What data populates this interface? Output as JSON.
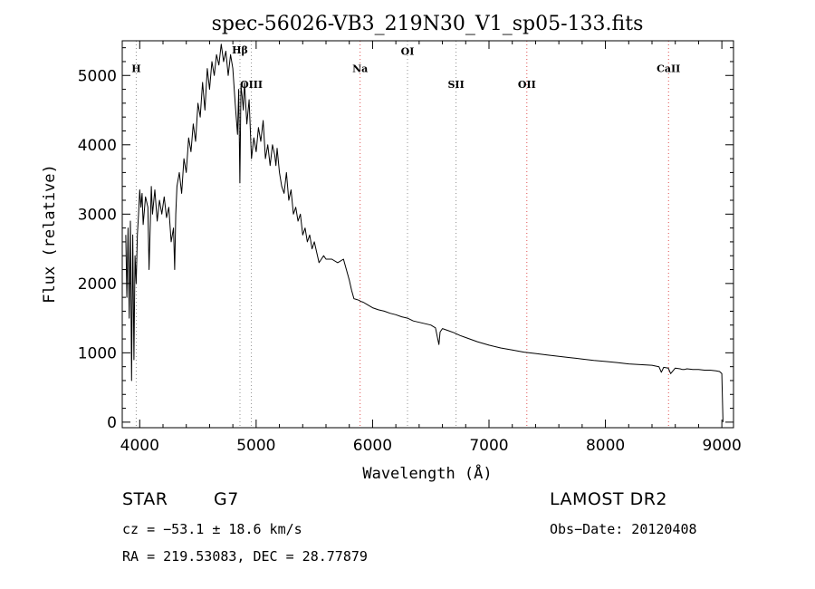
{
  "chart_data": {
    "type": "line",
    "title": "spec-56026-VB3_219N30_V1_sp05-133.fits",
    "xlabel": "Wavelength (Å)",
    "ylabel": "Flux (relative)",
    "xlim": [
      3850,
      9100
    ],
    "ylim": [
      -80,
      5500
    ],
    "x_ticks": [
      4000,
      5000,
      6000,
      7000,
      8000,
      9000
    ],
    "y_ticks": [
      0,
      1000,
      2000,
      3000,
      4000,
      5000
    ],
    "grid": false,
    "series": [
      {
        "x": [
          3880,
          3890,
          3900,
          3910,
          3920,
          3930,
          3940,
          3950,
          3960,
          3970,
          3980,
          3990,
          4000,
          4010,
          4020,
          4030,
          4050,
          4070,
          4080,
          4100,
          4110,
          4130,
          4150,
          4170,
          4190,
          4210,
          4230,
          4250,
          4270,
          4290,
          4300,
          4310,
          4320,
          4340,
          4360,
          4380,
          4400,
          4420,
          4440,
          4460,
          4480,
          4500,
          4520,
          4540,
          4560,
          4580,
          4600,
          4620,
          4640,
          4660,
          4680,
          4700,
          4720,
          4740,
          4760,
          4780,
          4800,
          4820,
          4840,
          4850,
          4860,
          4870,
          4880,
          4890,
          4900,
          4920,
          4940,
          4960,
          4980,
          5000,
          5020,
          5040,
          5060,
          5080,
          5100,
          5120,
          5140,
          5160,
          5170,
          5180,
          5200,
          5220,
          5240,
          5260,
          5280,
          5300,
          5320,
          5340,
          5360,
          5380,
          5400,
          5420,
          5440,
          5460,
          5480,
          5500,
          5520,
          5540,
          5560,
          5580,
          5600,
          5650,
          5700,
          5750,
          5800,
          5820,
          5840,
          5860,
          5880,
          5900,
          5920,
          5950,
          6000,
          6050,
          6100,
          6150,
          6200,
          6250,
          6300,
          6350,
          6400,
          6450,
          6500,
          6540,
          6560,
          6570,
          6580,
          6600,
          6650,
          6700,
          6750,
          6800,
          6900,
          7000,
          7100,
          7200,
          7300,
          7400,
          7500,
          7600,
          7700,
          7800,
          7900,
          8000,
          8100,
          8200,
          8300,
          8400,
          8460,
          8480,
          8500,
          8540,
          8560,
          8600,
          8640,
          8660,
          8680,
          8700,
          8750,
          8800,
          8850,
          8900,
          8950,
          8980,
          9000,
          9010
        ],
        "y": [
          2700,
          1800,
          2800,
          1500,
          2900,
          600,
          2700,
          900,
          2400,
          2000,
          2700,
          3000,
          3350,
          3100,
          3300,
          2850,
          3250,
          3100,
          2200,
          3400,
          3000,
          3350,
          2900,
          3200,
          3000,
          3250,
          2950,
          3100,
          2600,
          2800,
          2200,
          3000,
          3400,
          3600,
          3300,
          3800,
          3600,
          4100,
          3900,
          4300,
          4050,
          4600,
          4400,
          4900,
          4500,
          5100,
          4800,
          5200,
          5000,
          5300,
          5150,
          5450,
          5200,
          5350,
          5000,
          5300,
          5100,
          4600,
          4150,
          4800,
          3450,
          4850,
          4700,
          4500,
          4900,
          4300,
          4650,
          3800,
          4100,
          3900,
          4250,
          4050,
          4350,
          3800,
          4000,
          3700,
          4000,
          3850,
          3700,
          3950,
          3600,
          3400,
          3300,
          3600,
          3200,
          3350,
          3000,
          3100,
          2900,
          3000,
          2700,
          2800,
          2600,
          2700,
          2500,
          2600,
          2450,
          2300,
          2350,
          2400,
          2350,
          2350,
          2300,
          2350,
          2050,
          1900,
          1780,
          1770,
          1760,
          1740,
          1730,
          1700,
          1650,
          1620,
          1600,
          1570,
          1550,
          1520,
          1500,
          1460,
          1440,
          1420,
          1400,
          1360,
          1200,
          1120,
          1300,
          1350,
          1320,
          1290,
          1250,
          1220,
          1160,
          1110,
          1070,
          1040,
          1010,
          990,
          970,
          950,
          930,
          910,
          890,
          875,
          860,
          840,
          830,
          820,
          800,
          720,
          790,
          780,
          700,
          780,
          770,
          760,
          760,
          770,
          760,
          760,
          750,
          750,
          740,
          730,
          700,
          0
        ]
      }
    ],
    "annotations": [
      {
        "label": "H",
        "x": 3970,
        "color": "gray",
        "label_y": 5050
      },
      {
        "label": "Hβ",
        "x": 4861,
        "color": "gray",
        "label_y": 5320
      },
      {
        "label": "OIII",
        "x": 4959,
        "color": "gray",
        "label_y": 4820
      },
      {
        "label": "Na",
        "x": 5893,
        "color": "red",
        "label_y": 5050
      },
      {
        "label": "OI",
        "x": 6300,
        "color": "gray",
        "label_y": 5300
      },
      {
        "label": "SII",
        "x": 6717,
        "color": "gray",
        "label_y": 4820
      },
      {
        "label": "OII",
        "x": 7325,
        "color": "red",
        "label_y": 4820
      },
      {
        "label": "CaII",
        "x": 8542,
        "color": "red",
        "label_y": 5050
      }
    ]
  },
  "info": {
    "star_label": "STAR",
    "spectral_type": "G7",
    "survey": "LAMOST DR2",
    "cz": "cz = −53.1 ± 18.6 km/s",
    "obs_date": "Obs−Date: 20120408",
    "coords": "RA = 219.53083, DEC =  28.77879"
  }
}
